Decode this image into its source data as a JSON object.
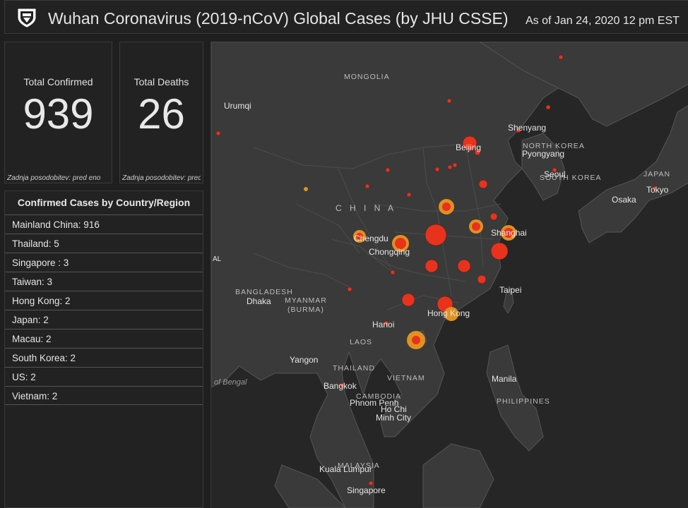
{
  "header": {
    "title": "Wuhan Coronavirus (2019-nCoV) Global Cases (by JHU CSSE)",
    "as_of": "As of Jan 24, 2020 12 pm EST"
  },
  "stats": {
    "confirmed": {
      "label": "Total Confirmed",
      "value": "939",
      "footer": "Zadnja posodobitev: pred eno"
    },
    "deaths": {
      "label": "Total Deaths",
      "value": "26",
      "footer": "Zadnja posodobitev: pred"
    }
  },
  "country_list": {
    "title": "Confirmed Cases by Country/Region",
    "items": [
      "Mainland China:  916",
      "Thailand:  5",
      "Singapore :  3",
      "Taiwan:  3",
      "Hong Kong:  2",
      "Japan:  2",
      "Macau:  2",
      "South Korea:  2",
      "US:  2",
      "Vietnam:  2"
    ]
  },
  "map": {
    "labels": {
      "mongolia": "MONGOLIA",
      "urumqi": "Urumqi",
      "shenyang": "Shenyang",
      "north_korea": "NORTH KOREA",
      "pyongyang": "Pyongyang",
      "beijing": "Beijing",
      "seoul": "Seoul",
      "south_korea": "SOUTH KOREA",
      "japan": "JAPAN",
      "tokyo": "Tokyo",
      "osaka": "Osaka",
      "china": "C H I N A",
      "chengdu": "Chengdu",
      "chongqing": "Chongqing",
      "shanghai": "Shanghai",
      "al": "AL",
      "bangladesh": "BANGLADESH",
      "dhaka": "Dhaka",
      "myanmar": "MYANMAR",
      "burma": "(BURMA)",
      "taipei": "Taipei",
      "hong_kong": "Hong Kong",
      "hanoi": "Hanoi",
      "laos": "LAOS",
      "yangon": "Yangon",
      "thailand": "THAILAND",
      "vietnam": "VIETNAM",
      "manila": "Manila",
      "bay_of_bengal": "of Bengal",
      "bangkok": "Bangkok",
      "cambodia": "CAMBODIA",
      "phnom_penh": "Phnom Penh",
      "ho_chi": "Ho Chi",
      "minh_city": "Minh City",
      "philippines": "PHILIPPINES",
      "malaysia": "MALAYSIA",
      "kuala_lumpur": "Kuala Lumpur",
      "singapore": "Singapore"
    },
    "colors": {
      "case_red": "#e8321c",
      "case_orange": "#e0911f",
      "land": "#3b3b3b",
      "water": "#262626"
    }
  }
}
